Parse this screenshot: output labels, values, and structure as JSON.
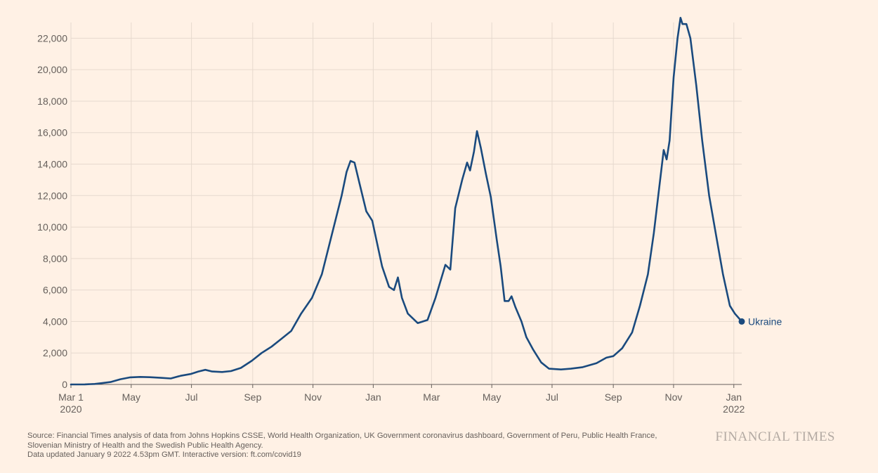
{
  "chart_data": {
    "type": "line",
    "title": "",
    "xlabel": "",
    "ylabel": "",
    "x_start": "2020-03-01",
    "x_end": "2022-01-09",
    "ylim": [
      0,
      23000
    ],
    "grid": true,
    "y_ticks": [
      {
        "value": 0,
        "label": "0"
      },
      {
        "value": 2000,
        "label": "2,000"
      },
      {
        "value": 4000,
        "label": "4,000"
      },
      {
        "value": 6000,
        "label": "6,000"
      },
      {
        "value": 8000,
        "label": "8,000"
      },
      {
        "value": 10000,
        "label": "10,000"
      },
      {
        "value": 12000,
        "label": "12,000"
      },
      {
        "value": 14000,
        "label": "14,000"
      },
      {
        "value": 16000,
        "label": "16,000"
      },
      {
        "value": 18000,
        "label": "18,000"
      },
      {
        "value": 20000,
        "label": "20,000"
      },
      {
        "value": 22000,
        "label": "22,000"
      }
    ],
    "x_ticks": [
      {
        "date": "2020-03-01",
        "label": "Mar 1",
        "sublabel": "2020"
      },
      {
        "date": "2020-05-01",
        "label": "May",
        "sublabel": ""
      },
      {
        "date": "2020-07-01",
        "label": "Jul",
        "sublabel": ""
      },
      {
        "date": "2020-09-01",
        "label": "Sep",
        "sublabel": ""
      },
      {
        "date": "2020-11-01",
        "label": "Nov",
        "sublabel": ""
      },
      {
        "date": "2021-01-01",
        "label": "Jan",
        "sublabel": ""
      },
      {
        "date": "2021-03-01",
        "label": "Mar",
        "sublabel": ""
      },
      {
        "date": "2021-05-01",
        "label": "May",
        "sublabel": ""
      },
      {
        "date": "2021-07-01",
        "label": "Jul",
        "sublabel": ""
      },
      {
        "date": "2021-09-01",
        "label": "Sep",
        "sublabel": ""
      },
      {
        "date": "2021-11-01",
        "label": "Nov",
        "sublabel": ""
      },
      {
        "date": "2022-01-01",
        "label": "Jan",
        "sublabel": "2022"
      }
    ],
    "series": [
      {
        "name": "Ukraine",
        "color": "#1a4a7e",
        "points": [
          [
            "2020-03-01",
            0
          ],
          [
            "2020-03-15",
            5
          ],
          [
            "2020-03-25",
            30
          ],
          [
            "2020-04-01",
            80
          ],
          [
            "2020-04-10",
            150
          ],
          [
            "2020-04-20",
            330
          ],
          [
            "2020-04-30",
            450
          ],
          [
            "2020-05-10",
            480
          ],
          [
            "2020-05-20",
            460
          ],
          [
            "2020-05-31",
            420
          ],
          [
            "2020-06-10",
            380
          ],
          [
            "2020-06-20",
            550
          ],
          [
            "2020-06-30",
            660
          ],
          [
            "2020-07-08",
            820
          ],
          [
            "2020-07-15",
            930
          ],
          [
            "2020-07-22",
            820
          ],
          [
            "2020-08-01",
            790
          ],
          [
            "2020-08-10",
            850
          ],
          [
            "2020-08-20",
            1050
          ],
          [
            "2020-08-31",
            1500
          ],
          [
            "2020-09-10",
            2000
          ],
          [
            "2020-09-20",
            2400
          ],
          [
            "2020-09-30",
            2900
          ],
          [
            "2020-10-10",
            3400
          ],
          [
            "2020-10-20",
            4500
          ],
          [
            "2020-10-31",
            5500
          ],
          [
            "2020-11-10",
            7000
          ],
          [
            "2020-11-20",
            9500
          ],
          [
            "2020-11-30",
            12000
          ],
          [
            "2020-12-05",
            13500
          ],
          [
            "2020-12-09",
            14200
          ],
          [
            "2020-12-13",
            14100
          ],
          [
            "2020-12-18",
            12800
          ],
          [
            "2020-12-25",
            11000
          ],
          [
            "2020-12-31",
            10400
          ],
          [
            "2021-01-10",
            7500
          ],
          [
            "2021-01-17",
            6200
          ],
          [
            "2021-01-22",
            6000
          ],
          [
            "2021-01-26",
            6800
          ],
          [
            "2021-01-30",
            5500
          ],
          [
            "2021-02-05",
            4500
          ],
          [
            "2021-02-15",
            3900
          ],
          [
            "2021-02-25",
            4100
          ],
          [
            "2021-03-05",
            5500
          ],
          [
            "2021-03-15",
            7600
          ],
          [
            "2021-03-20",
            7300
          ],
          [
            "2021-03-25",
            11200
          ],
          [
            "2021-04-01",
            13000
          ],
          [
            "2021-04-06",
            14100
          ],
          [
            "2021-04-09",
            13600
          ],
          [
            "2021-04-13",
            14800
          ],
          [
            "2021-04-16",
            16100
          ],
          [
            "2021-04-20",
            15000
          ],
          [
            "2021-04-25",
            13400
          ],
          [
            "2021-04-30",
            11900
          ],
          [
            "2021-05-06",
            9200
          ],
          [
            "2021-05-10",
            7500
          ],
          [
            "2021-05-14",
            5300
          ],
          [
            "2021-05-18",
            5300
          ],
          [
            "2021-05-21",
            5600
          ],
          [
            "2021-05-25",
            4900
          ],
          [
            "2021-05-31",
            4000
          ],
          [
            "2021-06-05",
            3000
          ],
          [
            "2021-06-12",
            2200
          ],
          [
            "2021-06-20",
            1400
          ],
          [
            "2021-06-28",
            1000
          ],
          [
            "2021-07-10",
            950
          ],
          [
            "2021-07-20",
            1000
          ],
          [
            "2021-08-01",
            1100
          ],
          [
            "2021-08-15",
            1350
          ],
          [
            "2021-08-25",
            1700
          ],
          [
            "2021-09-01",
            1800
          ],
          [
            "2021-09-10",
            2300
          ],
          [
            "2021-09-20",
            3300
          ],
          [
            "2021-09-28",
            5000
          ],
          [
            "2021-10-06",
            7000
          ],
          [
            "2021-10-12",
            9600
          ],
          [
            "2021-10-18",
            12800
          ],
          [
            "2021-10-22",
            14900
          ],
          [
            "2021-10-25",
            14300
          ],
          [
            "2021-10-28",
            15500
          ],
          [
            "2021-11-01",
            19500
          ],
          [
            "2021-11-05",
            22000
          ],
          [
            "2021-11-08",
            23300
          ],
          [
            "2021-11-10",
            22900
          ],
          [
            "2021-11-14",
            22900
          ],
          [
            "2021-11-18",
            22000
          ],
          [
            "2021-11-24",
            19000
          ],
          [
            "2021-11-30",
            15500
          ],
          [
            "2021-12-07",
            12000
          ],
          [
            "2021-12-14",
            9500
          ],
          [
            "2021-12-21",
            7000
          ],
          [
            "2021-12-28",
            5000
          ],
          [
            "2022-01-02",
            4500
          ],
          [
            "2022-01-09",
            4000
          ]
        ]
      }
    ]
  },
  "footer": {
    "source_line1": "Source: Financial Times analysis of data from Johns Hopkins CSSE, World Health Organization, UK Government coronavirus dashboard, Government of Peru, Public Health France,",
    "source_line2": "Slovenian Ministry of Health and the Swedish Public Health Agency.",
    "updated_line": "Data updated January 9 2022 4.53pm GMT. Interactive version: ft.com/covid19"
  },
  "brand": "FINANCIAL TIMES"
}
